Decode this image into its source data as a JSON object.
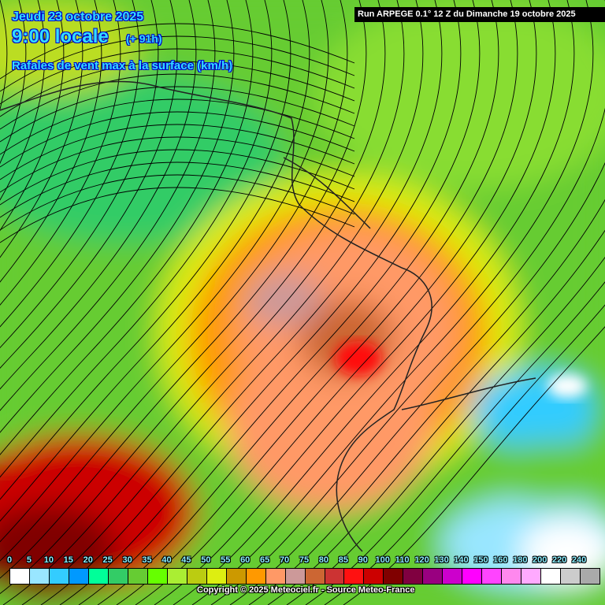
{
  "header": {
    "date": "Jeudi 23 octobre 2025",
    "time": "9:00 locale",
    "lead": "(+ 91h)",
    "parameter": "Rafales de vent max à la surface (km/h)",
    "run": "Run ARPEGE 0.1° 12 Z du Dimanche 19 octobre 2025"
  },
  "legend": {
    "labels": [
      "0",
      "5",
      "10",
      "15",
      "20",
      "25",
      "30",
      "35",
      "40",
      "45",
      "50",
      "55",
      "60",
      "65",
      "70",
      "75",
      "80",
      "85",
      "90",
      "100",
      "110",
      "120",
      "130",
      "140",
      "150",
      "160",
      "180",
      "200",
      "220",
      "240"
    ],
    "colors": [
      "#ffffff",
      "#99e6ff",
      "#33ccff",
      "#0099ff",
      "#00ff99",
      "#33cc66",
      "#66cc33",
      "#66ff00",
      "#aaee33",
      "#bbcc11",
      "#ddee11",
      "#cc9900",
      "#ff9900",
      "#ff9966",
      "#cc9999",
      "#cc6633",
      "#cc3333",
      "#ff1111",
      "#cc0000",
      "#800000",
      "#800040",
      "#990080",
      "#cc00cc",
      "#ff00ff",
      "#ff44ff",
      "#ff88ee",
      "#ffaaff",
      "#ffffff",
      "#cccccc",
      "#aaaaaa"
    ]
  },
  "footer": {
    "copyright": "Copyright © 2025 Meteociel.fr - Source Meteo-France"
  }
}
